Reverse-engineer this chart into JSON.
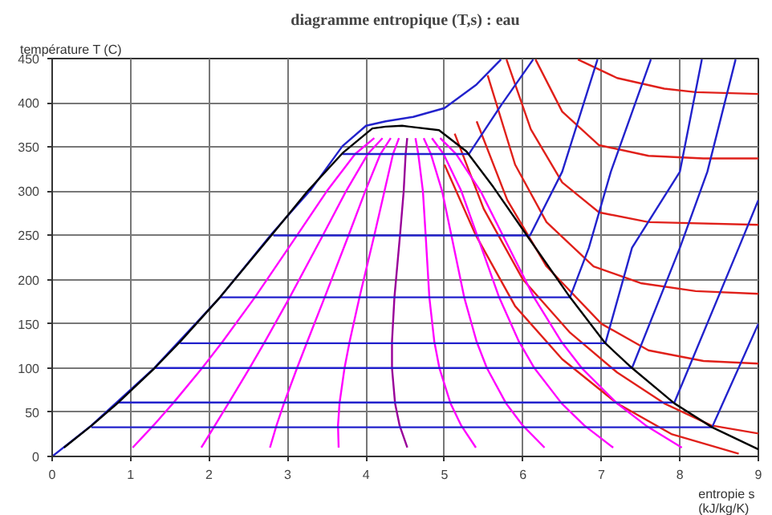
{
  "chart_data": {
    "type": "line",
    "title": "diagramme entropique (T,s) : eau",
    "xlabel": "entropie  s\n(kJ/kg/K)",
    "ylabel": "température  T  (C)",
    "xlim": [
      0,
      9
    ],
    "ylim": [
      0,
      450
    ],
    "xticks": [
      0,
      1,
      2,
      3,
      4,
      5,
      6,
      7,
      8,
      9
    ],
    "yticks": [
      0,
      50,
      100,
      150,
      200,
      250,
      300,
      350,
      400,
      450
    ],
    "grid": true,
    "line_style": "solid",
    "marker": "none",
    "series": [
      {
        "color": "#000000",
        "x": [
          0.151,
          0.505,
          0.831,
          1.307,
          1.634,
          2.139,
          2.793,
          3.255,
          3.7,
          4.08,
          4.25,
          4.46,
          4.93,
          5.28,
          5.62,
          6.05,
          6.6,
          7.05,
          7.39,
          7.93,
          8.41,
          9.0
        ],
        "values": [
          10,
          35,
          60,
          100,
          130,
          180,
          250,
          300,
          343,
          371,
          373,
          374,
          369,
          345,
          305,
          250,
          180,
          128,
          100,
          60,
          33,
          8
        ]
      },
      {
        "color": "#2222cc",
        "x": [
          0,
          0.5,
          1.3,
          2.14,
          2.8,
          3.3,
          3.7,
          4.0,
          4.25,
          4.6,
          5.0,
          5.4,
          5.72
        ],
        "values": [
          0,
          35,
          100,
          180,
          252,
          302,
          351,
          374,
          379,
          384,
          394,
          420,
          449
        ]
      },
      {
        "color": "#2222cc",
        "x": [
          3.7,
          5.31,
          5.72,
          6.13
        ],
        "values": [
          342,
          342,
          397,
          449
        ]
      },
      {
        "color": "#2222cc",
        "x": [
          2.82,
          6.09,
          6.5,
          6.95
        ],
        "values": [
          250,
          250,
          322,
          449
        ]
      },
      {
        "color": "#2222cc",
        "x": [
          2.14,
          6.6,
          6.84,
          7.12,
          7.63
        ],
        "values": [
          180,
          180,
          236,
          322,
          449
        ]
      },
      {
        "color": "#2222cc",
        "x": [
          1.63,
          7.05,
          7.39,
          8.0,
          8.28
        ],
        "values": [
          128,
          128,
          236,
          322,
          449
        ]
      },
      {
        "color": "#2222cc",
        "x": [
          1.32,
          7.39,
          8.0,
          8.35,
          8.71
        ],
        "values": [
          100,
          100,
          236,
          322,
          449
        ]
      },
      {
        "color": "#2222cc",
        "x": [
          0.83,
          7.93,
          8.75,
          9.0
        ],
        "values": [
          61,
          61,
          236,
          290
        ]
      },
      {
        "color": "#2222cc",
        "x": [
          0.5,
          8.41,
          9.0
        ],
        "values": [
          33,
          33,
          150
        ]
      },
      {
        "color": "#ff00ff",
        "x": [
          1.026,
          1.29,
          1.539,
          1.912,
          2.173,
          2.584,
          3.121,
          3.5,
          3.861,
          4.105
        ],
        "values": [
          10,
          35,
          60,
          100,
          130,
          180,
          250,
          300,
          342,
          360
        ]
      },
      {
        "color": "#ff00ff",
        "x": [
          1.901,
          2.074,
          2.246,
          2.516,
          2.713,
          3.028,
          3.449,
          3.745,
          4.022,
          4.21
        ],
        "values": [
          10,
          35,
          60,
          100,
          130,
          180,
          250,
          300,
          342,
          360
        ]
      },
      {
        "color": "#ff00ff",
        "x": [
          2.776,
          2.859,
          2.954,
          3.121,
          3.252,
          3.473,
          3.777,
          3.99,
          4.183,
          4.315
        ],
        "values": [
          10,
          35,
          60,
          100,
          130,
          180,
          250,
          300,
          342,
          360
        ]
      },
      {
        "color": "#ff00ff",
        "x": [
          3.651,
          3.643,
          3.662,
          3.726,
          3.791,
          3.917,
          4.105,
          4.235,
          4.344,
          4.42
        ],
        "values": [
          10,
          35,
          60,
          100,
          130,
          180,
          250,
          300,
          342,
          360
        ]
      },
      {
        "color": "#990099",
        "x": [
          4.526,
          4.428,
          4.37,
          4.331,
          4.331,
          4.362,
          4.433,
          4.48,
          4.505,
          4.525
        ],
        "values": [
          10,
          35,
          60,
          100,
          130,
          180,
          250,
          300,
          342,
          360
        ]
      },
      {
        "color": "#ff00ff",
        "x": [
          5.4,
          5.213,
          5.077,
          4.935,
          4.87,
          4.807,
          4.76,
          4.725,
          4.666,
          4.63
        ],
        "values": [
          10,
          35,
          60,
          100,
          130,
          180,
          250,
          300,
          342,
          360
        ]
      },
      {
        "color": "#ff00ff",
        "x": [
          6.275,
          5.997,
          5.785,
          5.54,
          5.409,
          5.251,
          5.088,
          4.97,
          4.827,
          4.735
        ],
        "values": [
          10,
          35,
          60,
          100,
          130,
          180,
          250,
          300,
          342,
          360
        ]
      },
      {
        "color": "#ff00ff",
        "x": [
          7.15,
          6.782,
          6.493,
          6.145,
          5.948,
          5.696,
          5.416,
          5.215,
          4.988,
          4.84
        ],
        "values": [
          10,
          35,
          60,
          100,
          130,
          180,
          250,
          300,
          342,
          360
        ]
      },
      {
        "color": "#ff00ff",
        "x": [
          8.025,
          7.566,
          7.2,
          6.749,
          6.488,
          6.14,
          5.744,
          5.46,
          5.149,
          4.945
        ],
        "values": [
          10,
          35,
          60,
          100,
          130,
          180,
          250,
          300,
          342,
          360
        ]
      },
      {
        "color": "#e0201a",
        "x": [
          6.7,
          7.2,
          7.8,
          8.2,
          9.0
        ],
        "values": [
          449,
          428,
          416,
          412,
          410
        ]
      },
      {
        "color": "#e0201a",
        "x": [
          6.16,
          6.5,
          6.97,
          7.6,
          8.3,
          9.0
        ],
        "values": [
          449,
          390,
          352,
          340,
          337,
          337
        ]
      },
      {
        "color": "#e0201a",
        "x": [
          5.79,
          6.1,
          6.5,
          6.97,
          7.6,
          9.0
        ],
        "values": [
          449,
          370,
          310,
          276,
          265,
          262
        ]
      },
      {
        "color": "#e0201a",
        "x": [
          5.55,
          5.9,
          6.3,
          6.9,
          7.5,
          8.2,
          9.0
        ],
        "values": [
          431,
          330,
          265,
          215,
          196,
          187,
          184
        ]
      },
      {
        "color": "#e0201a",
        "x": [
          5.41,
          5.8,
          6.3,
          7.0,
          7.6,
          8.3,
          9.0
        ],
        "values": [
          379,
          290,
          215,
          150,
          120,
          108,
          105
        ]
      },
      {
        "color": "#e0201a",
        "x": [
          5.13,
          5.5,
          6.0,
          6.6,
          7.2,
          7.8,
          8.4,
          9.0
        ],
        "values": [
          365,
          280,
          200,
          140,
          95,
          60,
          35,
          26
        ]
      },
      {
        "color": "#e0201a",
        "x": [
          5.0,
          5.4,
          5.9,
          6.5,
          7.2,
          7.9,
          8.75
        ],
        "values": [
          330,
          250,
          170,
          110,
          60,
          25,
          3
        ]
      }
    ]
  }
}
